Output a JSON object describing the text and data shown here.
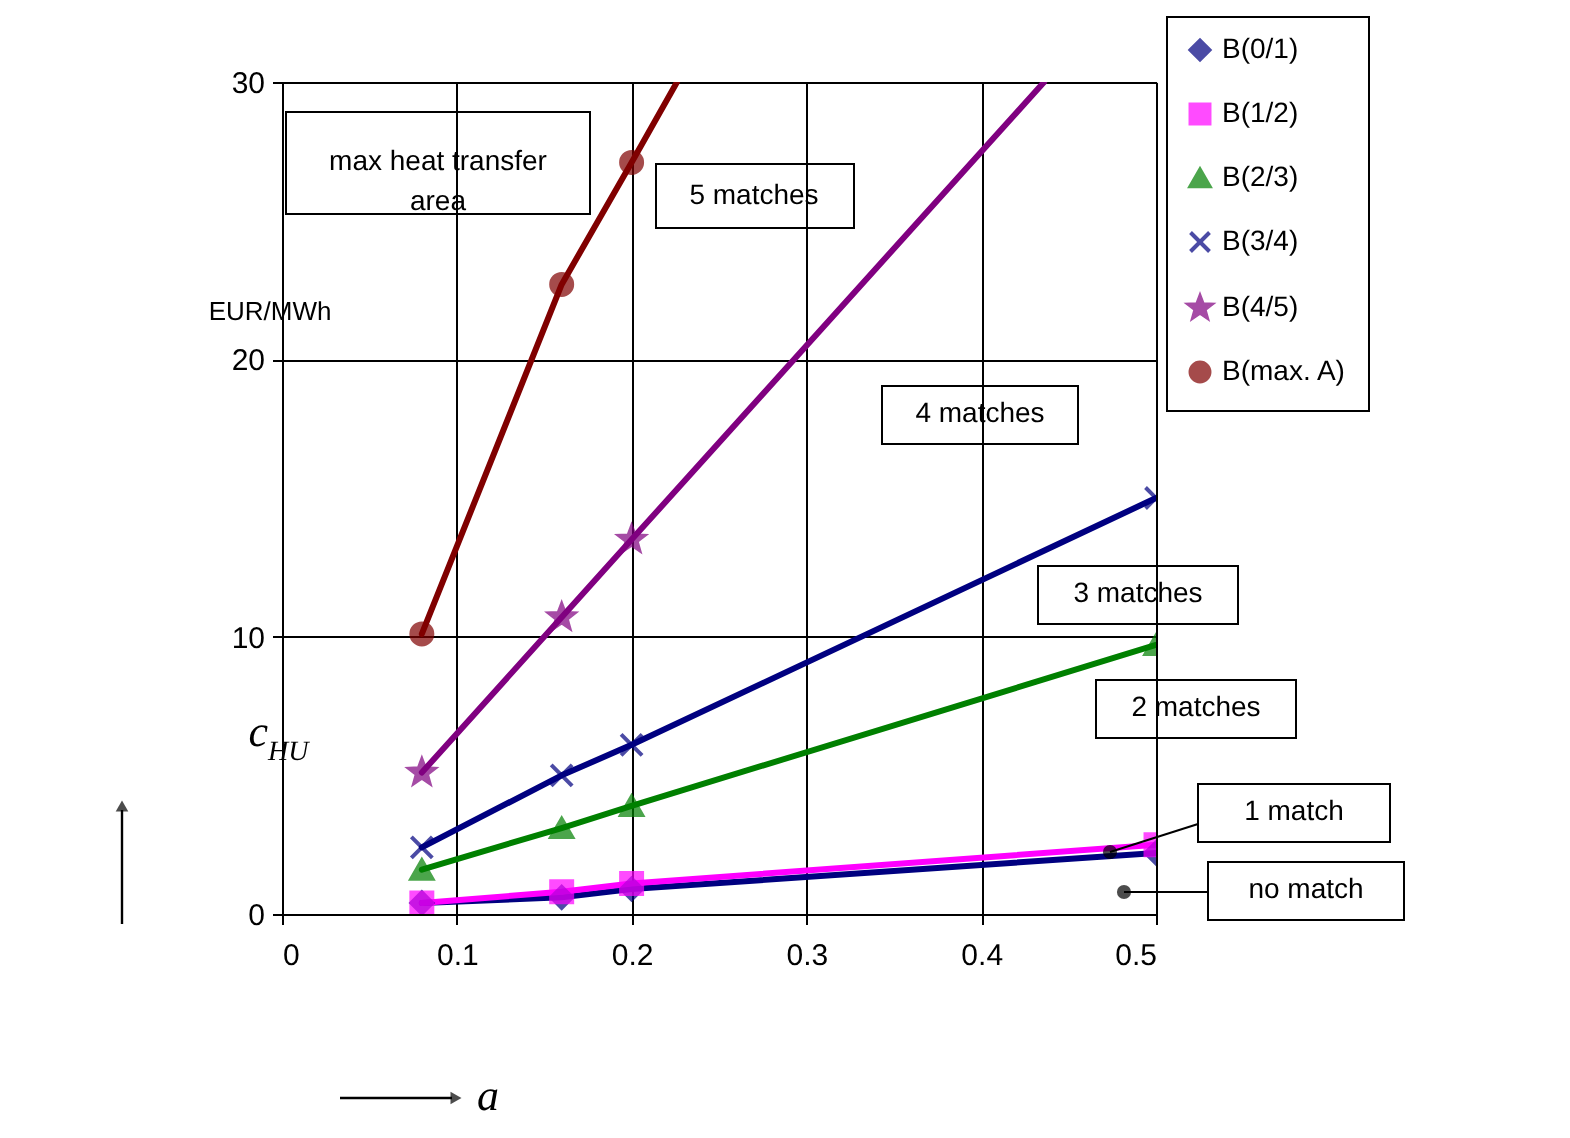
{
  "chart_data": {
    "type": "line",
    "x": [
      0.08,
      0.16,
      0.2,
      0.5
    ],
    "series": [
      {
        "name": "B(0/1)",
        "color": "#000080",
        "marker": "diamond",
        "values": [
          0.4,
          0.6,
          0.9,
          2.2
        ]
      },
      {
        "name": "B(1/2)",
        "color": "#ff00ff",
        "marker": "square",
        "values": [
          0.4,
          0.8,
          1.1,
          2.5
        ]
      },
      {
        "name": "B(2/3)",
        "color": "#008000",
        "marker": "triangle",
        "values": [
          1.6,
          3.1,
          3.9,
          9.7
        ]
      },
      {
        "name": "B(3/4)",
        "color": "#000080",
        "marker": "cross",
        "values": [
          2.4,
          5.0,
          6.1,
          15.0
        ]
      },
      {
        "name": "B(4/5)",
        "color": "#800080",
        "marker": "star",
        "x": [
          0.08,
          0.16,
          0.2,
          0.436
        ],
        "values": [
          5.1,
          10.7,
          13.5,
          30
        ]
      },
      {
        "name": "B(max. A)",
        "color": "#800000",
        "marker": "circle",
        "x": [
          0.08,
          0.16,
          0.2,
          0.226
        ],
        "values": [
          10.1,
          22.7,
          27.1,
          30
        ]
      }
    ],
    "xlabel": "a",
    "ylabel": "c$_{HU}$",
    "annotations": [
      "EUR/MWh",
      "max heat transfer area",
      "5 matches",
      "4 matches",
      "3 matches",
      "2 matches",
      "1 match",
      "no match"
    ],
    "xlim": [
      0,
      0.5
    ],
    "xticks": [
      0,
      0.1,
      0.2,
      0.3,
      0.4,
      0.5
    ],
    "ylim": [
      0,
      30
    ],
    "yticks": [
      0,
      10,
      20,
      30
    ],
    "grid": true,
    "legend": "top right",
    "line_style": "solid"
  }
}
